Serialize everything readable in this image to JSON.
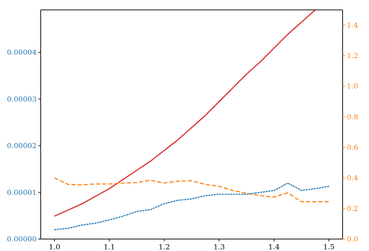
{
  "chart_data": {
    "type": "line",
    "title": "",
    "xlabel": "",
    "ylabel_left": "",
    "ylabel_right": "",
    "x_ticks": [
      "1.0",
      "1.1",
      "1.2",
      "1.3",
      "1.4",
      "1.5"
    ],
    "x_tick_values": [
      1.0,
      1.1,
      1.2,
      1.3,
      1.4,
      1.5
    ],
    "xlim": [
      0.975,
      1.525
    ],
    "y_left_ticks": [
      "0.00000",
      "0.00001",
      "0.00002",
      "0.00003",
      "0.00004"
    ],
    "y_left_tick_values": [
      0.0,
      1e-05,
      2e-05,
      3e-05,
      4e-05
    ],
    "ylim_left": [
      0.0,
      4.91e-05
    ],
    "y_right_ticks": [
      "0.0",
      "0.2",
      "0.4",
      "0.6",
      "0.8",
      "1.0",
      "1.2",
      "1.4"
    ],
    "y_right_tick_values": [
      0.0,
      0.2,
      0.4,
      0.6,
      0.8,
      1.0,
      1.2,
      1.4
    ],
    "ylim_right": [
      0.0,
      1.5
    ],
    "grid": false,
    "colors": {
      "left_axis": "#1f77b4",
      "right_axis": "#ff7f0e",
      "dotted": "#1f77b4",
      "dashed": "#ff7f0e",
      "solid": "#d62728"
    },
    "series": [
      {
        "axis": "right",
        "style": "solid",
        "color": "#d62728",
        "x": [
          1.0,
          1.025,
          1.05,
          1.075,
          1.1,
          1.125,
          1.15,
          1.175,
          1.2,
          1.225,
          1.25,
          1.275,
          1.3,
          1.325,
          1.35,
          1.375,
          1.4,
          1.425,
          1.45,
          1.475,
          1.5
        ],
        "values": [
          0.15,
          0.19,
          0.23,
          0.28,
          0.33,
          0.39,
          0.45,
          0.51,
          0.58,
          0.65,
          0.73,
          0.81,
          0.9,
          0.99,
          1.08,
          1.16,
          1.25,
          1.34,
          1.42,
          1.5,
          1.58
        ]
      },
      {
        "axis": "left",
        "style": "dashed",
        "color": "#ff7f0e",
        "x": [
          1.0,
          1.025,
          1.05,
          1.075,
          1.1,
          1.125,
          1.15,
          1.175,
          1.2,
          1.225,
          1.25,
          1.275,
          1.3,
          1.325,
          1.35,
          1.375,
          1.4,
          1.425,
          1.45,
          1.475,
          1.5
        ],
        "values": [
          1.31e-05,
          1.17e-05,
          1.16e-05,
          1.18e-05,
          1.18e-05,
          1.2e-05,
          1.21e-05,
          1.26e-05,
          1.2e-05,
          1.24e-05,
          1.25e-05,
          1.17e-05,
          1.13e-05,
          1.04e-05,
          9.8e-06,
          9.3e-06,
          9e-06,
          9.9e-06,
          8e-06,
          8e-06,
          8e-06
        ]
      },
      {
        "axis": "left",
        "style": "dotted",
        "color": "#1f77b4",
        "x": [
          1.0,
          1.025,
          1.05,
          1.075,
          1.1,
          1.125,
          1.15,
          1.175,
          1.2,
          1.225,
          1.25,
          1.275,
          1.3,
          1.325,
          1.35,
          1.375,
          1.4,
          1.41,
          1.425,
          1.45,
          1.475,
          1.5
        ],
        "values": [
          2e-06,
          2.3e-06,
          3e-06,
          3.4e-06,
          4.1e-06,
          4.9e-06,
          5.9e-06,
          6.3e-06,
          7.6e-06,
          8.3e-06,
          8.6e-06,
          9.3e-06,
          9.6e-06,
          9.6e-06,
          9.6e-06,
          1e-05,
          1.04e-05,
          1.1e-05,
          1.2e-05,
          1.04e-05,
          1.08e-05,
          1.13e-05
        ]
      }
    ]
  }
}
